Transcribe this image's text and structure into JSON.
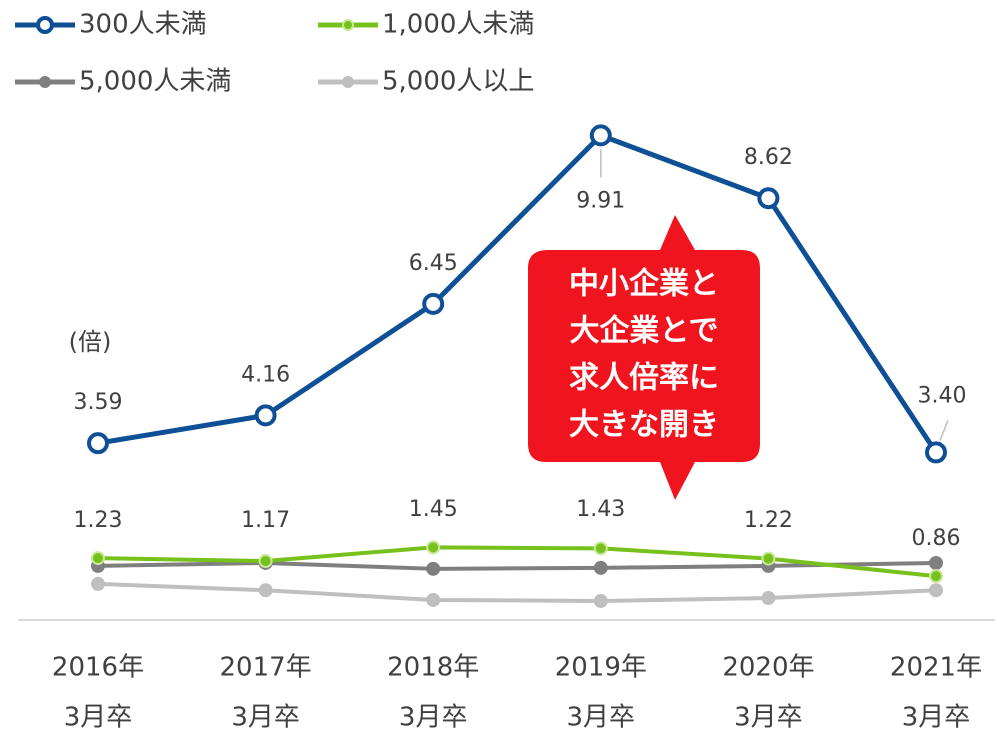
{
  "chart_data": {
    "type": "line",
    "categories": [
      [
        "2016年",
        "3月卒"
      ],
      [
        "2017年",
        "3月卒"
      ],
      [
        "2018年",
        "3月卒"
      ],
      [
        "2019年",
        "3月卒"
      ],
      [
        "2020年",
        "3月卒"
      ],
      [
        "2021年",
        "3月卒"
      ]
    ],
    "series": [
      {
        "name": "300人未満",
        "color": "#0e4f96",
        "values": [
          3.59,
          4.16,
          6.45,
          9.91,
          8.62,
          3.4
        ],
        "value_labels": [
          "3.59",
          "4.16",
          "6.45",
          "9.91",
          "8.62",
          "3.40"
        ]
      },
      {
        "name": "1,000人未満",
        "color": "#77c11c",
        "values": [
          1.23,
          1.17,
          1.45,
          1.43,
          1.22,
          0.86
        ]
      },
      {
        "name": "5,000人未満",
        "color": "#7f7f7f",
        "values": [
          1.07,
          1.13,
          1.01,
          1.03,
          1.07,
          1.13
        ]
      },
      {
        "name": "5,000人以上",
        "color": "#bfbfbf",
        "values": [
          0.7,
          0.57,
          0.37,
          0.35,
          0.41,
          0.57
        ]
      }
    ],
    "ylim": [
      0,
      10
    ],
    "y_unit": "(倍)",
    "annotation": [
      "中小企業と",
      "大企業とで",
      "求人倍率に",
      "大きな開き"
    ]
  }
}
